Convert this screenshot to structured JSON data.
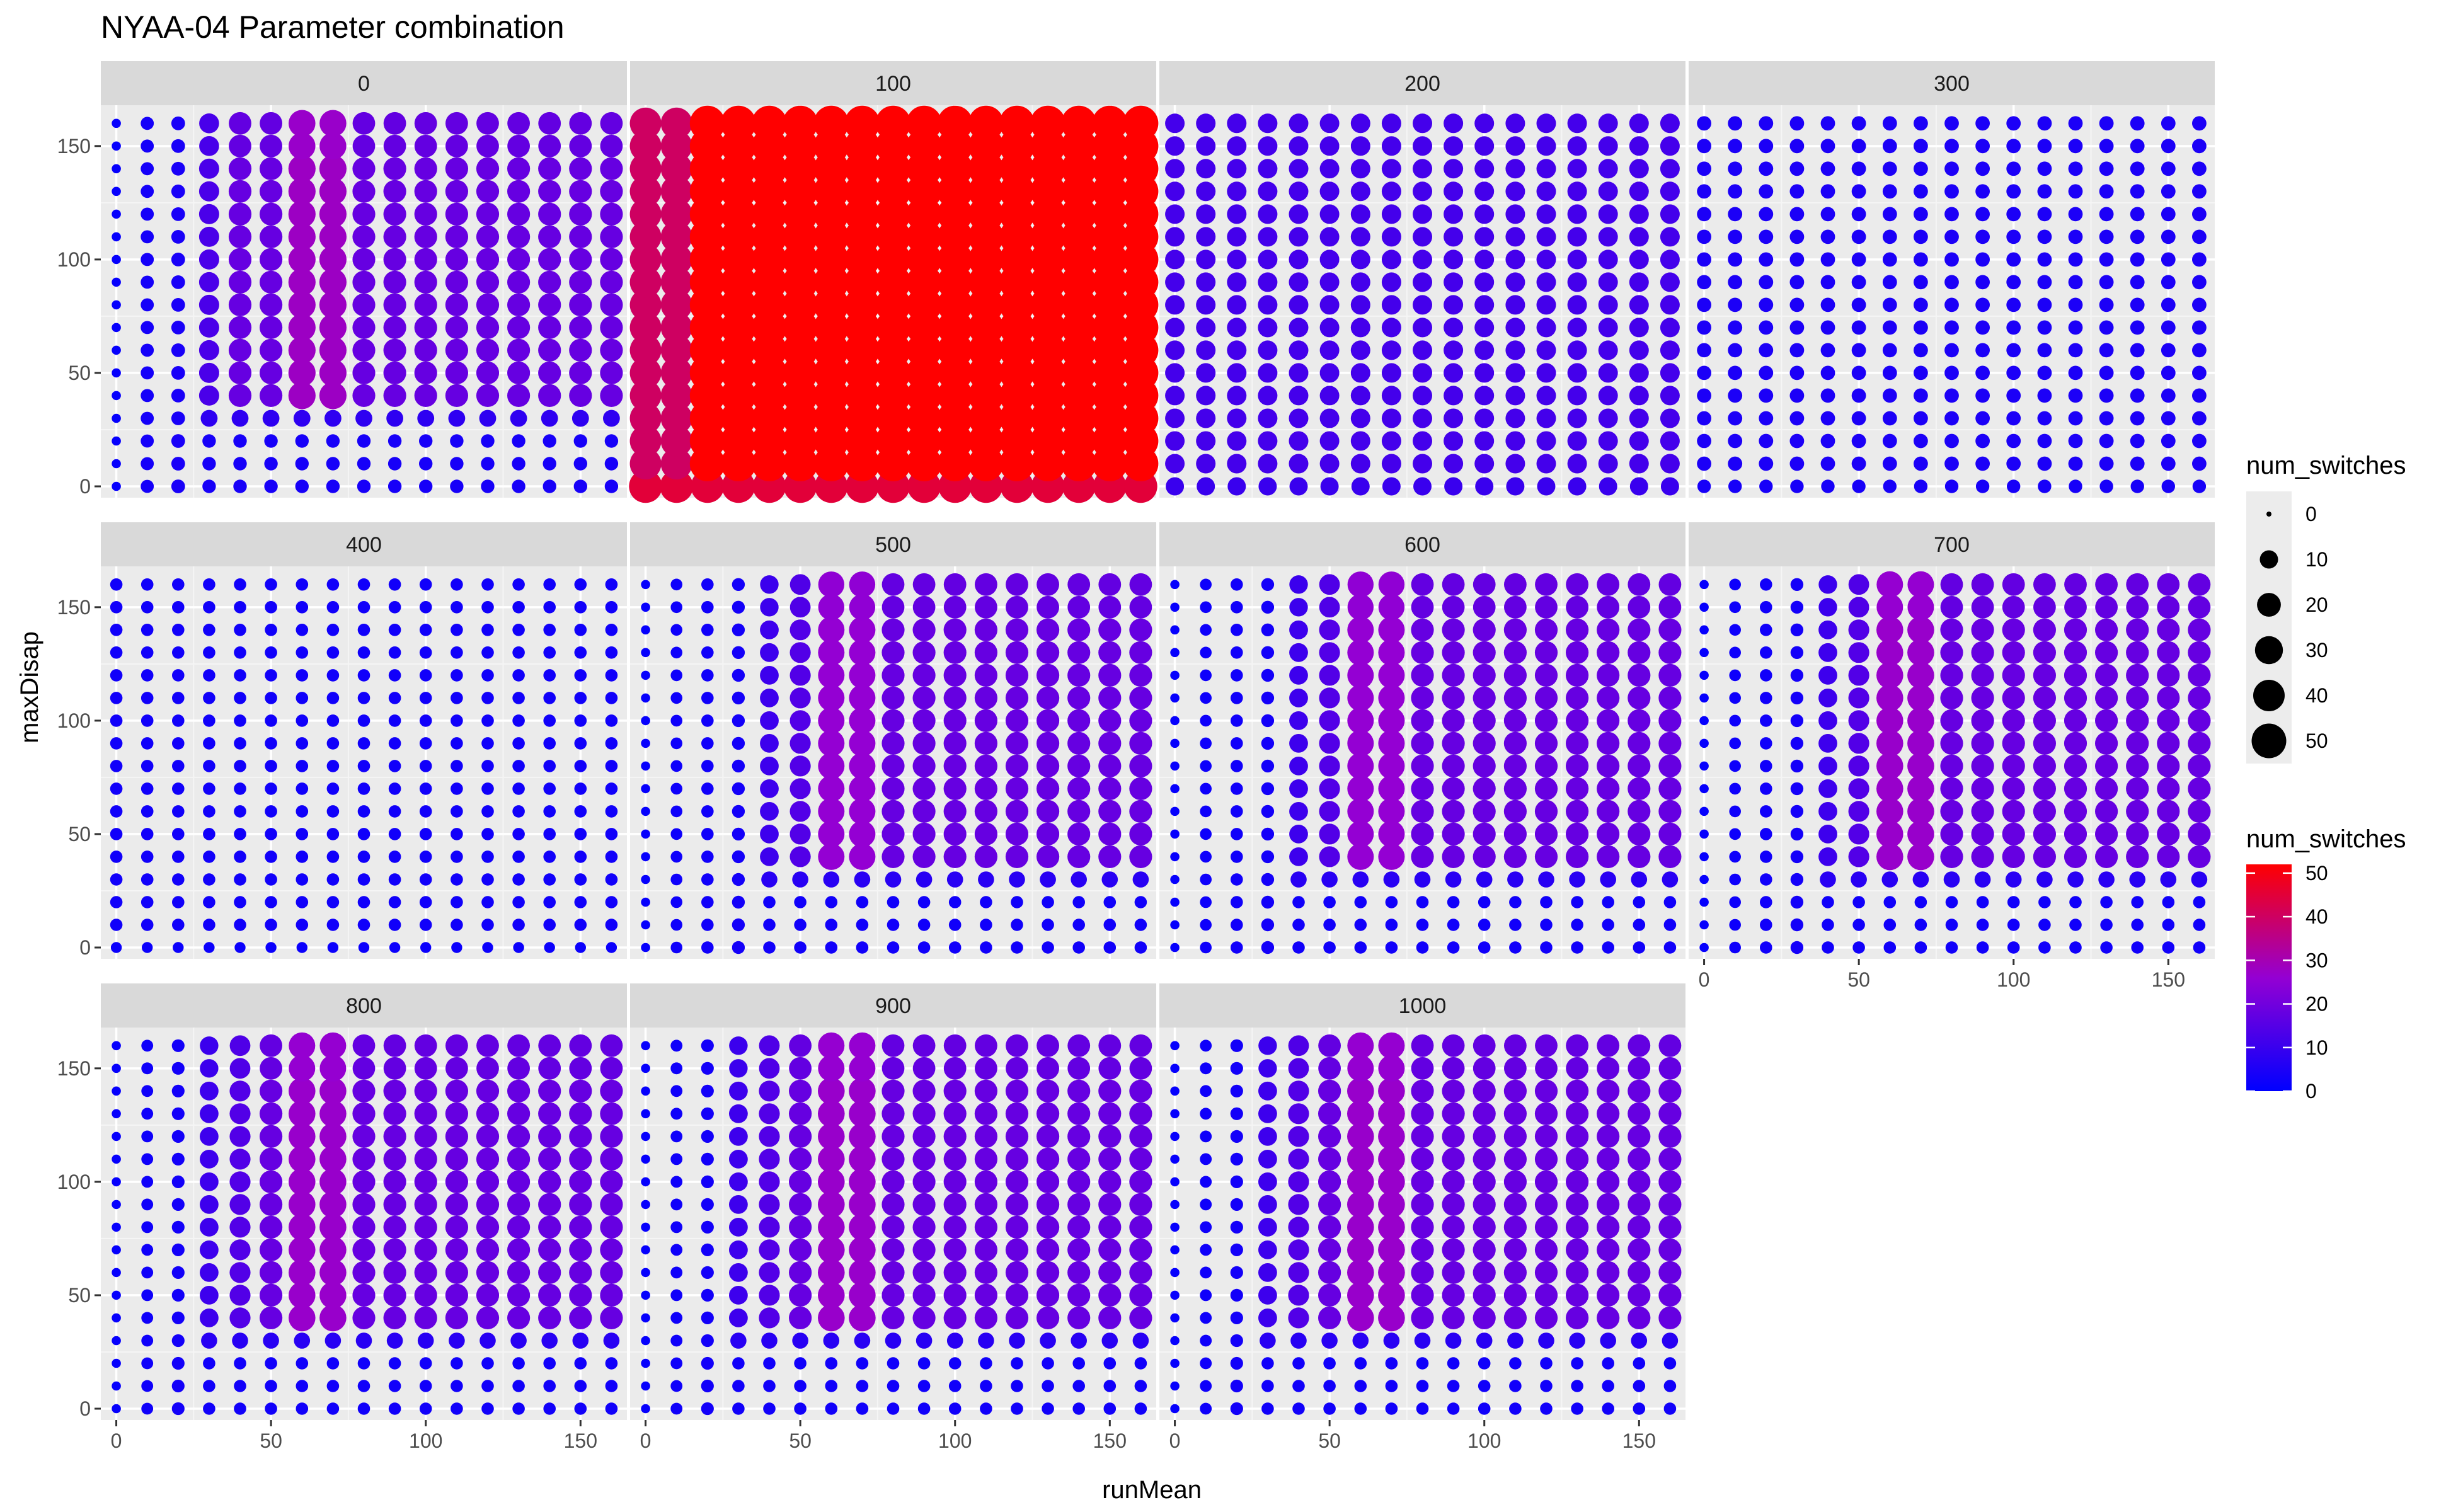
{
  "chart_data": {
    "type": "scatter",
    "title": "NYAA-04 Parameter combination",
    "xlabel": "runMean",
    "ylabel": "maxDisap",
    "xlim": [
      -5,
      165
    ],
    "ylim": [
      -5,
      168
    ],
    "x_ticks": [
      0,
      50,
      100,
      150
    ],
    "y_ticks": [
      0,
      50,
      100,
      150
    ],
    "x": [
      0,
      10,
      20,
      30,
      40,
      50,
      60,
      70,
      80,
      90,
      100,
      110,
      120,
      130,
      140,
      150,
      160
    ],
    "y": [
      0,
      10,
      20,
      30,
      40,
      50,
      60,
      70,
      80,
      90,
      100,
      110,
      120,
      130,
      140,
      150,
      160
    ],
    "grid": true,
    "facet_variable_values": [
      "0",
      "100",
      "200",
      "300",
      "400",
      "500",
      "600",
      "700",
      "800",
      "900",
      "1000"
    ],
    "facets": [
      {
        "label": "0",
        "pattern": "peak",
        "peak_x": [
          60,
          70
        ],
        "threshold_y": 40,
        "low_x": 30,
        "ramp": 20,
        "peak_value": 28,
        "plateau_value": 18,
        "low_value": 4,
        "edge_value": 1
      },
      {
        "label": "100",
        "pattern": "saturated",
        "low_x": 20,
        "low_value": 40,
        "value": 52,
        "bottom_value": 45
      },
      {
        "label": "200",
        "pattern": "uniform",
        "value": 12,
        "bottom_value": 10
      },
      {
        "label": "300",
        "pattern": "uniform",
        "value": 5,
        "bottom_value": 4
      },
      {
        "label": "400",
        "pattern": "uniform",
        "value": 3,
        "bottom_value": 2
      },
      {
        "label": "500",
        "pattern": "peak",
        "peak_x": [
          60,
          70
        ],
        "threshold_y": 40,
        "low_x": 40,
        "ramp": 30,
        "peak_value": 26,
        "plateau_value": 18,
        "low_value": 3,
        "edge_value": 1
      },
      {
        "label": "600",
        "pattern": "peak",
        "peak_x": [
          60,
          70
        ],
        "threshold_y": 40,
        "low_x": 40,
        "ramp": 30,
        "peak_value": 26,
        "plateau_value": 18,
        "low_value": 3,
        "edge_value": 1
      },
      {
        "label": "700",
        "pattern": "peak",
        "peak_x": [
          60,
          70
        ],
        "threshold_y": 40,
        "low_x": 40,
        "ramp": 30,
        "peak_value": 27,
        "plateau_value": 18,
        "low_value": 3,
        "edge_value": 1
      },
      {
        "label": "800",
        "pattern": "peak",
        "peak_x": [
          60,
          70
        ],
        "threshold_y": 40,
        "low_x": 30,
        "ramp": 30,
        "peak_value": 27,
        "plateau_value": 18,
        "low_value": 3,
        "edge_value": 1
      },
      {
        "label": "900",
        "pattern": "peak",
        "peak_x": [
          60,
          70
        ],
        "threshold_y": 40,
        "low_x": 30,
        "ramp": 30,
        "peak_value": 27,
        "plateau_value": 18,
        "low_value": 3,
        "edge_value": 1
      },
      {
        "label": "1000",
        "pattern": "peak",
        "peak_x": [
          60,
          70
        ],
        "threshold_y": 40,
        "low_x": 30,
        "ramp": 30,
        "peak_value": 27,
        "plateau_value": 18,
        "low_value": 3,
        "edge_value": 1
      }
    ],
    "size_legend": {
      "title": "num_switches",
      "values": [
        0,
        10,
        20,
        30,
        40,
        50
      ]
    },
    "color_legend": {
      "title": "num_switches",
      "values": [
        0,
        10,
        20,
        30,
        40,
        50
      ],
      "min": 0,
      "max": 52,
      "low_color": "#0000ff",
      "mid_color": "#9400d3",
      "high_color": "#ff0000"
    },
    "colors": {
      "panel_background": "#ebebeb",
      "strip_background": "#d9d9d9",
      "grid_major": "#ffffff",
      "grid_minor": "#f5f5f5"
    }
  }
}
